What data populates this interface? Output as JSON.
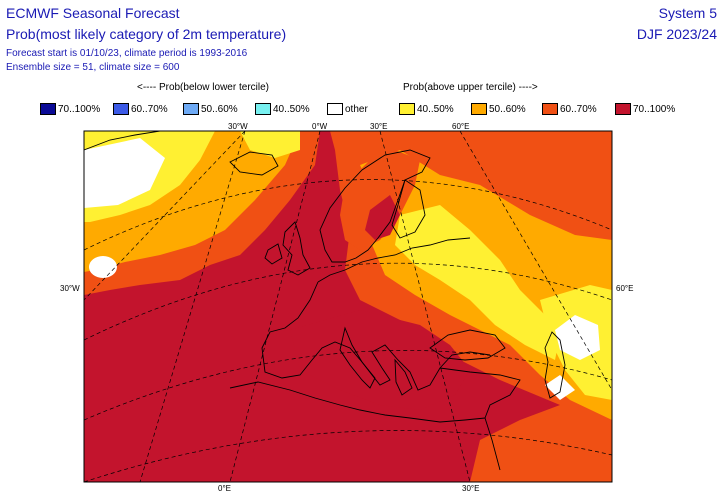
{
  "header": {
    "title": "ECMWF Seasonal Forecast",
    "subtitle": "Prob(most likely category of 2m temperature)",
    "info_line1": "Forecast start is 01/10/23, climate period is 1993-2016",
    "info_line2": "Ensemble size = 51, climate size = 600",
    "system": "System 5",
    "season": "DJF 2023/24"
  },
  "legend": {
    "below_header": "<---- Prob(below lower tercile)",
    "above_header": "Prob(above upper tercile) ---->",
    "items": [
      {
        "label": "70..100%",
        "color": "#0a0a96"
      },
      {
        "label": "60..70%",
        "color": "#3c5ae6"
      },
      {
        "label": "50..60%",
        "color": "#6eaaf5"
      },
      {
        "label": "40..50%",
        "color": "#78f0f0"
      },
      {
        "label": "other",
        "color": "#ffffff"
      },
      {
        "label": "40..50%",
        "color": "#fff032"
      },
      {
        "label": "50..60%",
        "color": "#ffaa00"
      },
      {
        "label": "60..70%",
        "color": "#f05014"
      },
      {
        "label": "70..100%",
        "color": "#c3142d"
      }
    ]
  },
  "map": {
    "region": "Europe",
    "top_labels": [
      "30°W",
      "0°W",
      "30°E",
      "60°E"
    ],
    "left_label": "30°W",
    "right_label": "60°E",
    "bottom_labels": [
      "0°E",
      "30°E"
    ]
  }
}
